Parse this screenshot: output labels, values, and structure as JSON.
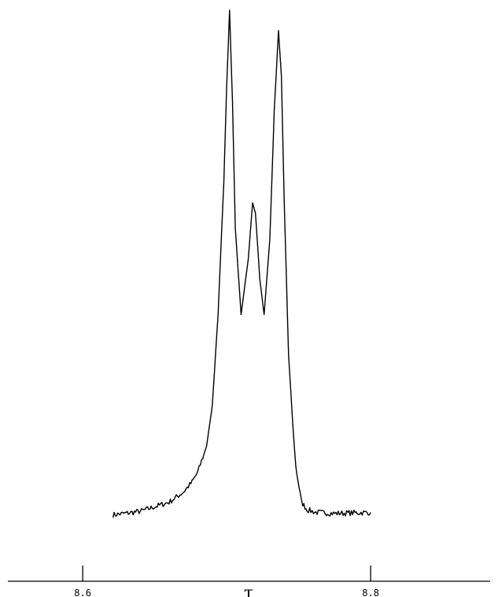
{
  "chart_data": {
    "type": "line",
    "title": "",
    "xlabel": "τ",
    "ylabel": "",
    "x_reversed": false,
    "xlim": [
      8.548,
      8.883
    ],
    "ylim": [
      0,
      100
    ],
    "grid": false,
    "ticks": [
      {
        "value": 8.6,
        "label": "8.6"
      },
      {
        "value": 8.8,
        "label": "8.8"
      }
    ],
    "series": [
      {
        "name": "",
        "x": [
          8.621,
          8.64,
          8.66,
          8.67,
          8.676,
          8.68,
          8.686,
          8.69,
          8.694,
          8.698,
          8.7,
          8.702,
          8.704,
          8.706,
          8.71,
          8.715,
          8.718,
          8.72,
          8.723,
          8.726,
          8.73,
          8.733,
          8.736,
          8.738,
          8.74,
          8.743,
          8.746,
          8.748,
          8.752,
          8.756,
          8.762,
          8.775,
          8.8
        ],
        "y": [
          0.5,
          1.2,
          3.0,
          5.0,
          7.0,
          9.0,
          14.0,
          22.0,
          40.0,
          66.0,
          85.0,
          100.0,
          82.0,
          57.0,
          40.0,
          51.0,
          62.0,
          60.0,
          47.0,
          40.0,
          55.0,
          80.0,
          96.0,
          87.0,
          62.0,
          32.0,
          18.0,
          10.0,
          3.0,
          1.5,
          1.0,
          0.8,
          1.0
        ]
      }
    ]
  }
}
